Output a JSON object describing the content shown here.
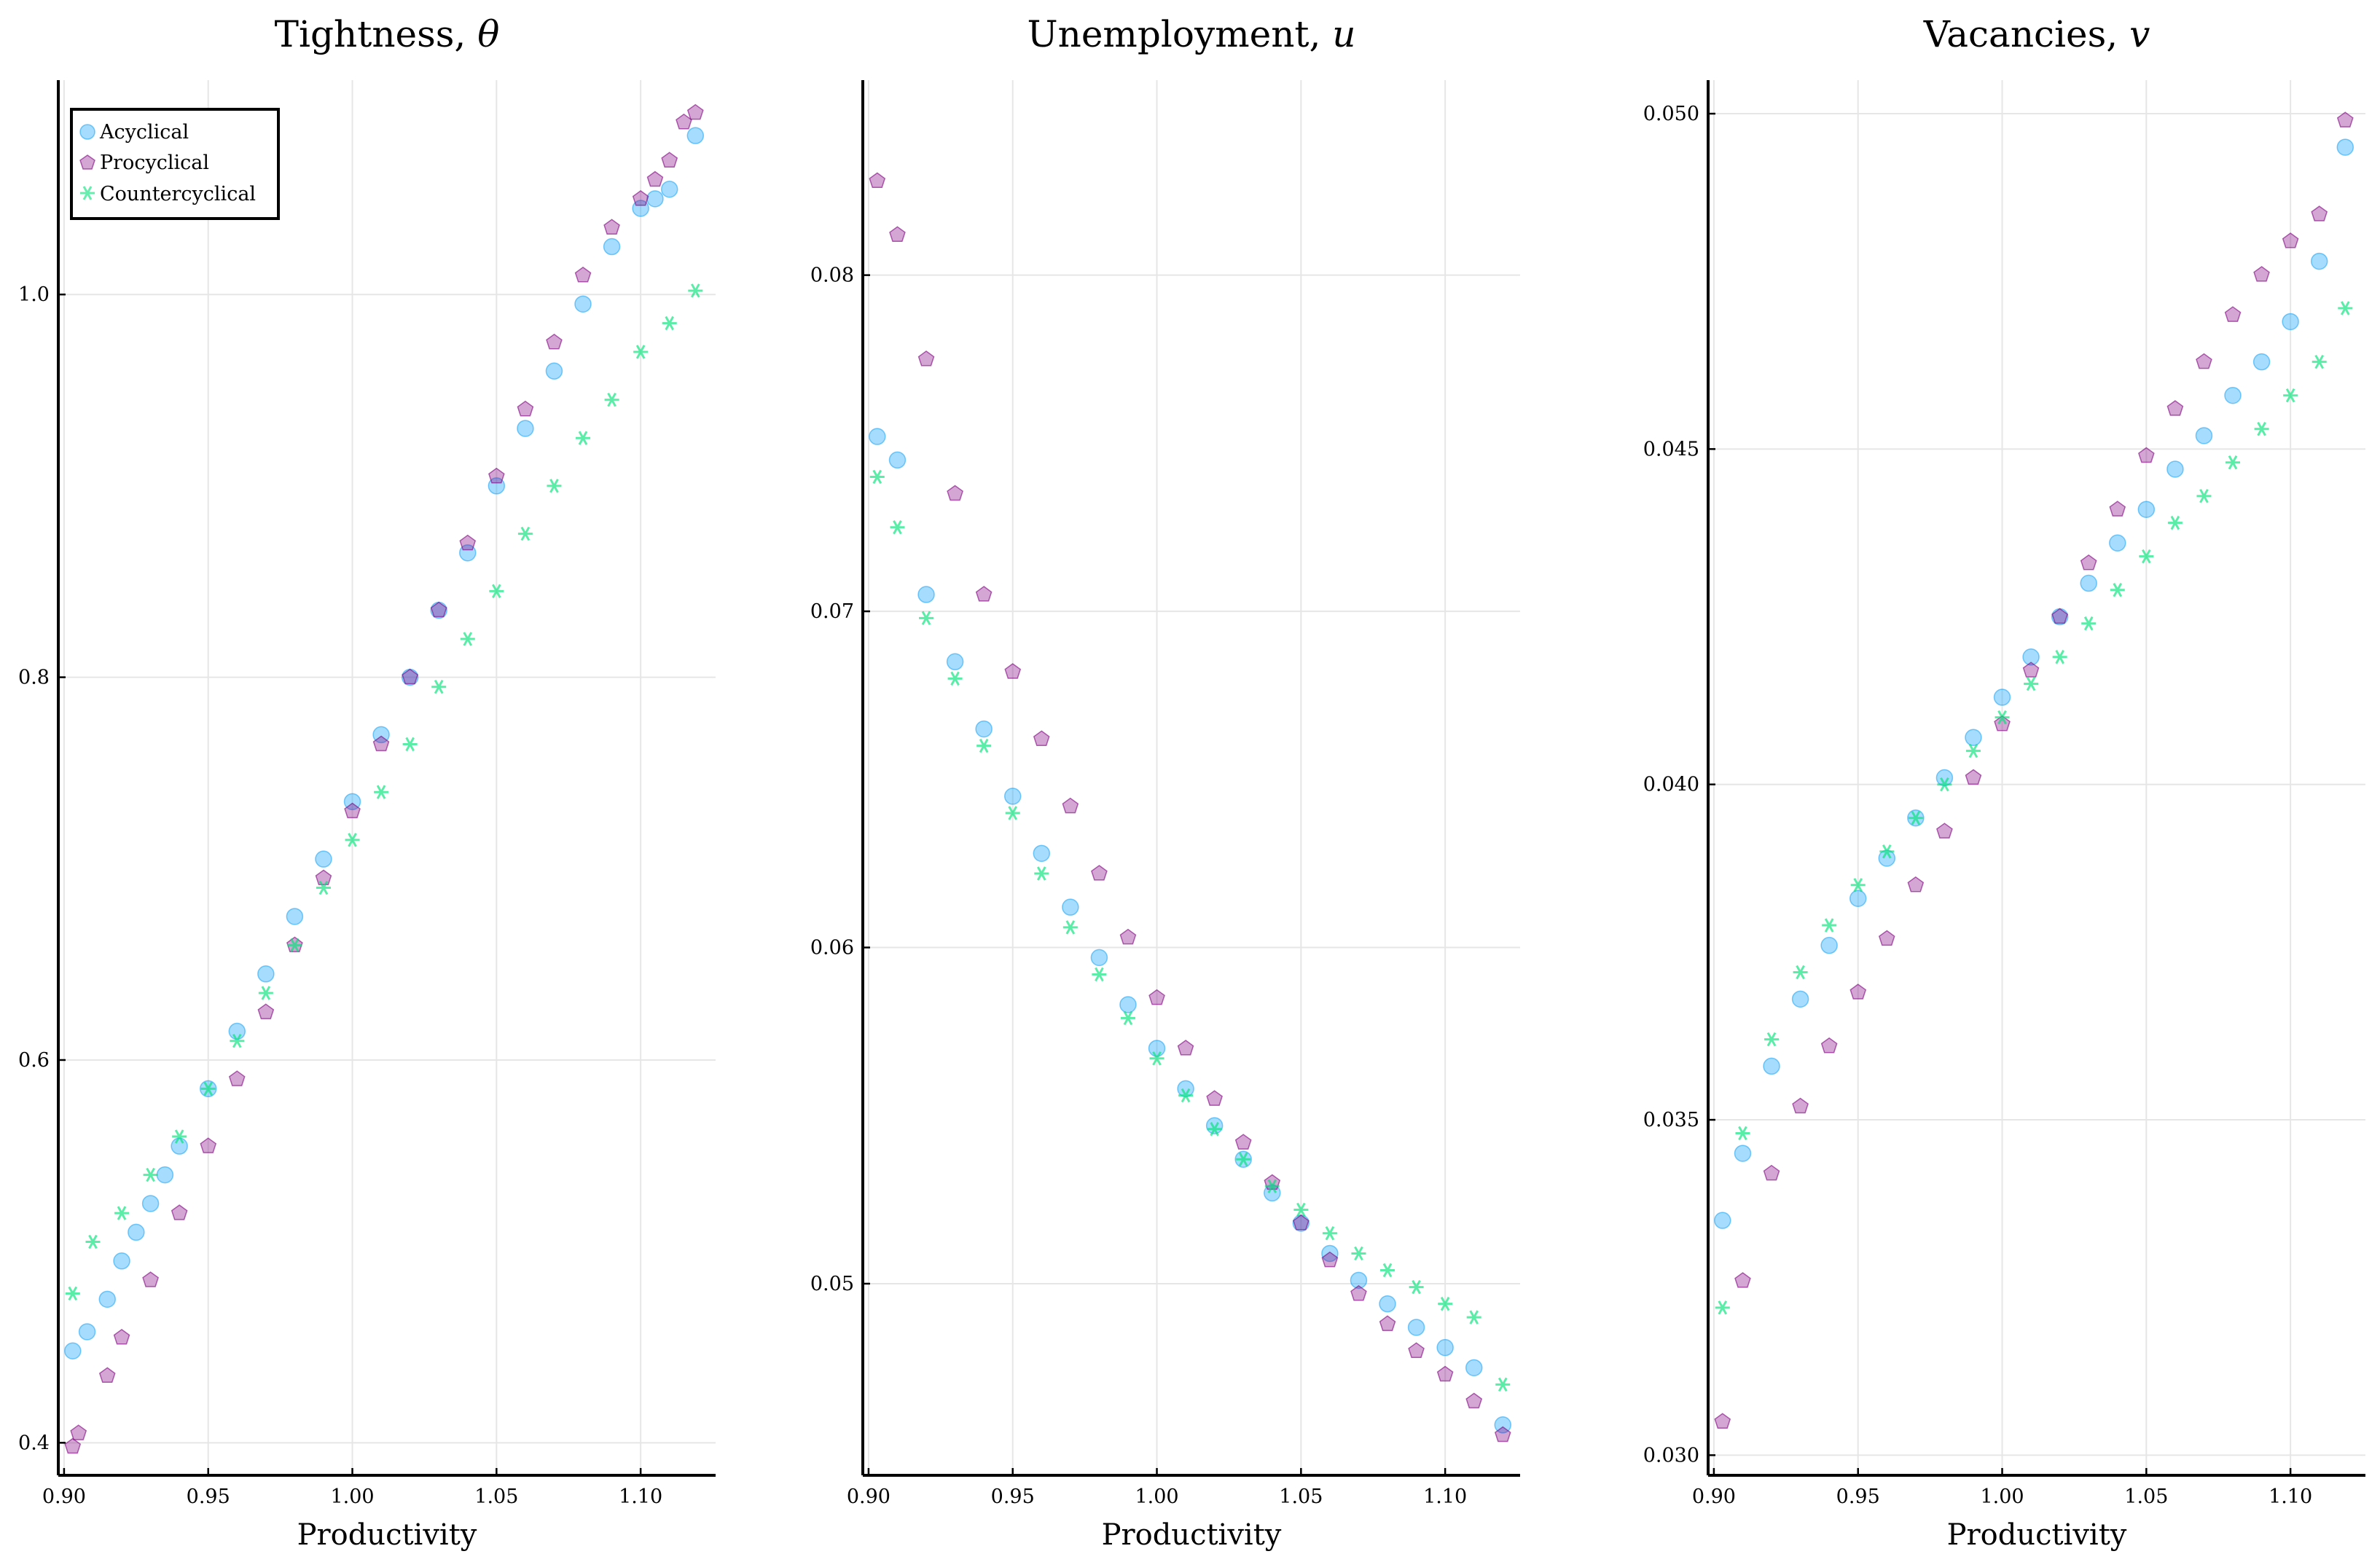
{
  "colors": {
    "acyclical": "#009AFA",
    "procyclical": "#800080",
    "countercyclical": "#00E37A",
    "grid": "#e6e6e6",
    "axis": "#000000"
  },
  "legend": {
    "placement": "top-left",
    "entries": [
      {
        "label": "Acyclical",
        "marker": "circle",
        "color": "#009AFA"
      },
      {
        "label": "Procyclical",
        "marker": "pentagon",
        "color": "#800080"
      },
      {
        "label": "Countercyclical",
        "marker": "asterisk",
        "color": "#00E37A"
      }
    ]
  },
  "chart_data": [
    {
      "type": "scatter",
      "title": "Tightness, θ",
      "title_text": "Tightness, ",
      "title_symbol": "θ",
      "xlabel": "Productivity",
      "ylabel": "",
      "xlim": [
        0.898,
        1.126
      ],
      "ylim": [
        0.383,
        1.112
      ],
      "xticks": [
        0.9,
        0.95,
        1.0,
        1.05,
        1.1
      ],
      "xtick_labels": [
        "0.90",
        "0.95",
        "1.00",
        "1.05",
        "1.10"
      ],
      "yticks": [
        0.4,
        0.6,
        0.8,
        1.0
      ],
      "ytick_labels": [
        "0.4",
        "0.6",
        "0.8",
        "1.0"
      ],
      "grid": true,
      "legend": true,
      "series": [
        {
          "name": "Acyclical",
          "x": [
            0.903,
            0.908,
            0.915,
            0.92,
            0.925,
            0.93,
            0.935,
            0.94,
            0.95,
            0.96,
            0.97,
            0.98,
            0.99,
            1.0,
            1.01,
            1.02,
            1.03,
            1.04,
            1.05,
            1.06,
            1.07,
            1.08,
            1.09,
            1.1,
            1.105,
            1.11,
            1.119
          ],
          "y": [
            0.448,
            0.458,
            0.475,
            0.495,
            0.51,
            0.525,
            0.54,
            0.555,
            0.585,
            0.615,
            0.645,
            0.675,
            0.705,
            0.735,
            0.77,
            0.8,
            0.835,
            0.865,
            0.9,
            0.93,
            0.96,
            0.995,
            1.025,
            1.045,
            1.05,
            1.055,
            1.083
          ]
        },
        {
          "name": "Procyclical",
          "x": [
            0.903,
            0.905,
            0.915,
            0.92,
            0.93,
            0.94,
            0.95,
            0.96,
            0.97,
            0.98,
            0.99,
            1.0,
            1.01,
            1.02,
            1.03,
            1.04,
            1.05,
            1.06,
            1.07,
            1.08,
            1.09,
            1.1,
            1.105,
            1.11,
            1.115,
            1.119
          ],
          "y": [
            0.398,
            0.405,
            0.435,
            0.455,
            0.485,
            0.52,
            0.555,
            0.59,
            0.625,
            0.66,
            0.695,
            0.73,
            0.765,
            0.8,
            0.835,
            0.87,
            0.905,
            0.94,
            0.975,
            1.01,
            1.035,
            1.05,
            1.06,
            1.07,
            1.09,
            1.095
          ]
        },
        {
          "name": "Countercyclical",
          "x": [
            0.903,
            0.91,
            0.92,
            0.93,
            0.94,
            0.95,
            0.96,
            0.97,
            0.98,
            0.99,
            1.0,
            1.01,
            1.02,
            1.03,
            1.04,
            1.05,
            1.06,
            1.07,
            1.08,
            1.09,
            1.1,
            1.11,
            1.119
          ],
          "y": [
            0.478,
            0.505,
            0.52,
            0.54,
            0.56,
            0.585,
            0.61,
            0.635,
            0.66,
            0.69,
            0.715,
            0.74,
            0.765,
            0.795,
            0.82,
            0.845,
            0.875,
            0.9,
            0.925,
            0.945,
            0.97,
            0.985,
            1.002
          ]
        }
      ]
    },
    {
      "type": "scatter",
      "title": "Unemployment, u",
      "title_text": "Unemployment, ",
      "title_symbol": "u",
      "xlabel": "Productivity",
      "ylabel": "",
      "xlim": [
        0.898,
        1.126
      ],
      "ylim": [
        0.0443,
        0.0858
      ],
      "xticks": [
        0.9,
        0.95,
        1.0,
        1.05,
        1.1
      ],
      "xtick_labels": [
        "0.90",
        "0.95",
        "1.00",
        "1.05",
        "1.10"
      ],
      "yticks": [
        0.05,
        0.06,
        0.07,
        0.08
      ],
      "ytick_labels": [
        "0.05",
        "0.06",
        "0.07",
        "0.08"
      ],
      "grid": true,
      "legend": false,
      "series": [
        {
          "name": "Acyclical",
          "x": [
            0.903,
            0.91,
            0.92,
            0.93,
            0.94,
            0.95,
            0.96,
            0.97,
            0.98,
            0.99,
            1.0,
            1.01,
            1.02,
            1.03,
            1.04,
            1.05,
            1.06,
            1.07,
            1.08,
            1.09,
            1.1,
            1.11,
            1.12
          ],
          "y": [
            0.0752,
            0.0745,
            0.0705,
            0.0685,
            0.0665,
            0.0645,
            0.0628,
            0.0612,
            0.0597,
            0.0583,
            0.057,
            0.0558,
            0.0547,
            0.0537,
            0.0527,
            0.0518,
            0.0509,
            0.0501,
            0.0494,
            0.0487,
            0.0481,
            0.0475,
            0.0458
          ]
        },
        {
          "name": "Procyclical",
          "x": [
            0.903,
            0.91,
            0.92,
            0.93,
            0.94,
            0.95,
            0.96,
            0.97,
            0.98,
            0.99,
            1.0,
            1.01,
            1.02,
            1.03,
            1.04,
            1.05,
            1.06,
            1.07,
            1.08,
            1.09,
            1.1,
            1.11,
            1.12
          ],
          "y": [
            0.0828,
            0.0812,
            0.0775,
            0.0735,
            0.0705,
            0.0682,
            0.0662,
            0.0642,
            0.0622,
            0.0603,
            0.0585,
            0.057,
            0.0555,
            0.0542,
            0.053,
            0.0518,
            0.0507,
            0.0497,
            0.0488,
            0.048,
            0.0473,
            0.0465,
            0.0455
          ]
        },
        {
          "name": "Countercyclical",
          "x": [
            0.903,
            0.91,
            0.92,
            0.93,
            0.94,
            0.95,
            0.96,
            0.97,
            0.98,
            0.99,
            1.0,
            1.01,
            1.02,
            1.03,
            1.04,
            1.05,
            1.06,
            1.07,
            1.08,
            1.09,
            1.1,
            1.11,
            1.12
          ],
          "y": [
            0.074,
            0.0725,
            0.0698,
            0.068,
            0.066,
            0.064,
            0.0622,
            0.0606,
            0.0592,
            0.0579,
            0.0567,
            0.0556,
            0.0546,
            0.0537,
            0.0529,
            0.0522,
            0.0515,
            0.0509,
            0.0504,
            0.0499,
            0.0494,
            0.049,
            0.047
          ]
        }
      ]
    },
    {
      "type": "scatter",
      "title": "Vacancies, v",
      "title_text": "Vacancies, ",
      "title_symbol": "v",
      "xlabel": "Productivity",
      "ylabel": "",
      "xlim": [
        0.898,
        1.126
      ],
      "ylim": [
        0.0297,
        0.0505
      ],
      "xticks": [
        0.9,
        0.95,
        1.0,
        1.05,
        1.1
      ],
      "xtick_labels": [
        "0.90",
        "0.95",
        "1.00",
        "1.05",
        "1.10"
      ],
      "yticks": [
        0.03,
        0.035,
        0.04,
        0.045,
        0.05
      ],
      "ytick_labels": [
        "0.030",
        "0.035",
        "0.040",
        "0.045",
        "0.050"
      ],
      "grid": true,
      "legend": false,
      "series": [
        {
          "name": "Acyclical",
          "x": [
            0.903,
            0.91,
            0.92,
            0.93,
            0.94,
            0.95,
            0.96,
            0.97,
            0.98,
            0.99,
            1.0,
            1.01,
            1.02,
            1.03,
            1.04,
            1.05,
            1.06,
            1.07,
            1.08,
            1.09,
            1.1,
            1.11,
            1.119
          ],
          "y": [
            0.0335,
            0.0345,
            0.0358,
            0.0368,
            0.0376,
            0.0383,
            0.0389,
            0.0395,
            0.0401,
            0.0407,
            0.0413,
            0.0419,
            0.0425,
            0.043,
            0.0436,
            0.0441,
            0.0447,
            0.0452,
            0.0458,
            0.0463,
            0.0469,
            0.0478,
            0.0495
          ]
        },
        {
          "name": "Procyclical",
          "x": [
            0.903,
            0.91,
            0.92,
            0.93,
            0.94,
            0.95,
            0.96,
            0.97,
            0.98,
            0.99,
            1.0,
            1.01,
            1.02,
            1.03,
            1.04,
            1.05,
            1.06,
            1.07,
            1.08,
            1.09,
            1.1,
            1.11,
            1.119
          ],
          "y": [
            0.0305,
            0.0326,
            0.0342,
            0.0352,
            0.0361,
            0.0369,
            0.0377,
            0.0385,
            0.0393,
            0.0401,
            0.0409,
            0.0417,
            0.0425,
            0.0433,
            0.0441,
            0.0449,
            0.0456,
            0.0463,
            0.047,
            0.0476,
            0.0481,
            0.0485,
            0.0499
          ]
        },
        {
          "name": "Countercyclical",
          "x": [
            0.903,
            0.91,
            0.92,
            0.93,
            0.94,
            0.95,
            0.96,
            0.97,
            0.98,
            0.99,
            1.0,
            1.01,
            1.02,
            1.03,
            1.04,
            1.05,
            1.06,
            1.07,
            1.08,
            1.09,
            1.1,
            1.11,
            1.119
          ],
          "y": [
            0.0322,
            0.0348,
            0.0362,
            0.0372,
            0.0379,
            0.0385,
            0.039,
            0.0395,
            0.04,
            0.0405,
            0.041,
            0.0415,
            0.0419,
            0.0424,
            0.0429,
            0.0434,
            0.0439,
            0.0443,
            0.0448,
            0.0453,
            0.0458,
            0.0463,
            0.0471
          ]
        }
      ]
    }
  ]
}
